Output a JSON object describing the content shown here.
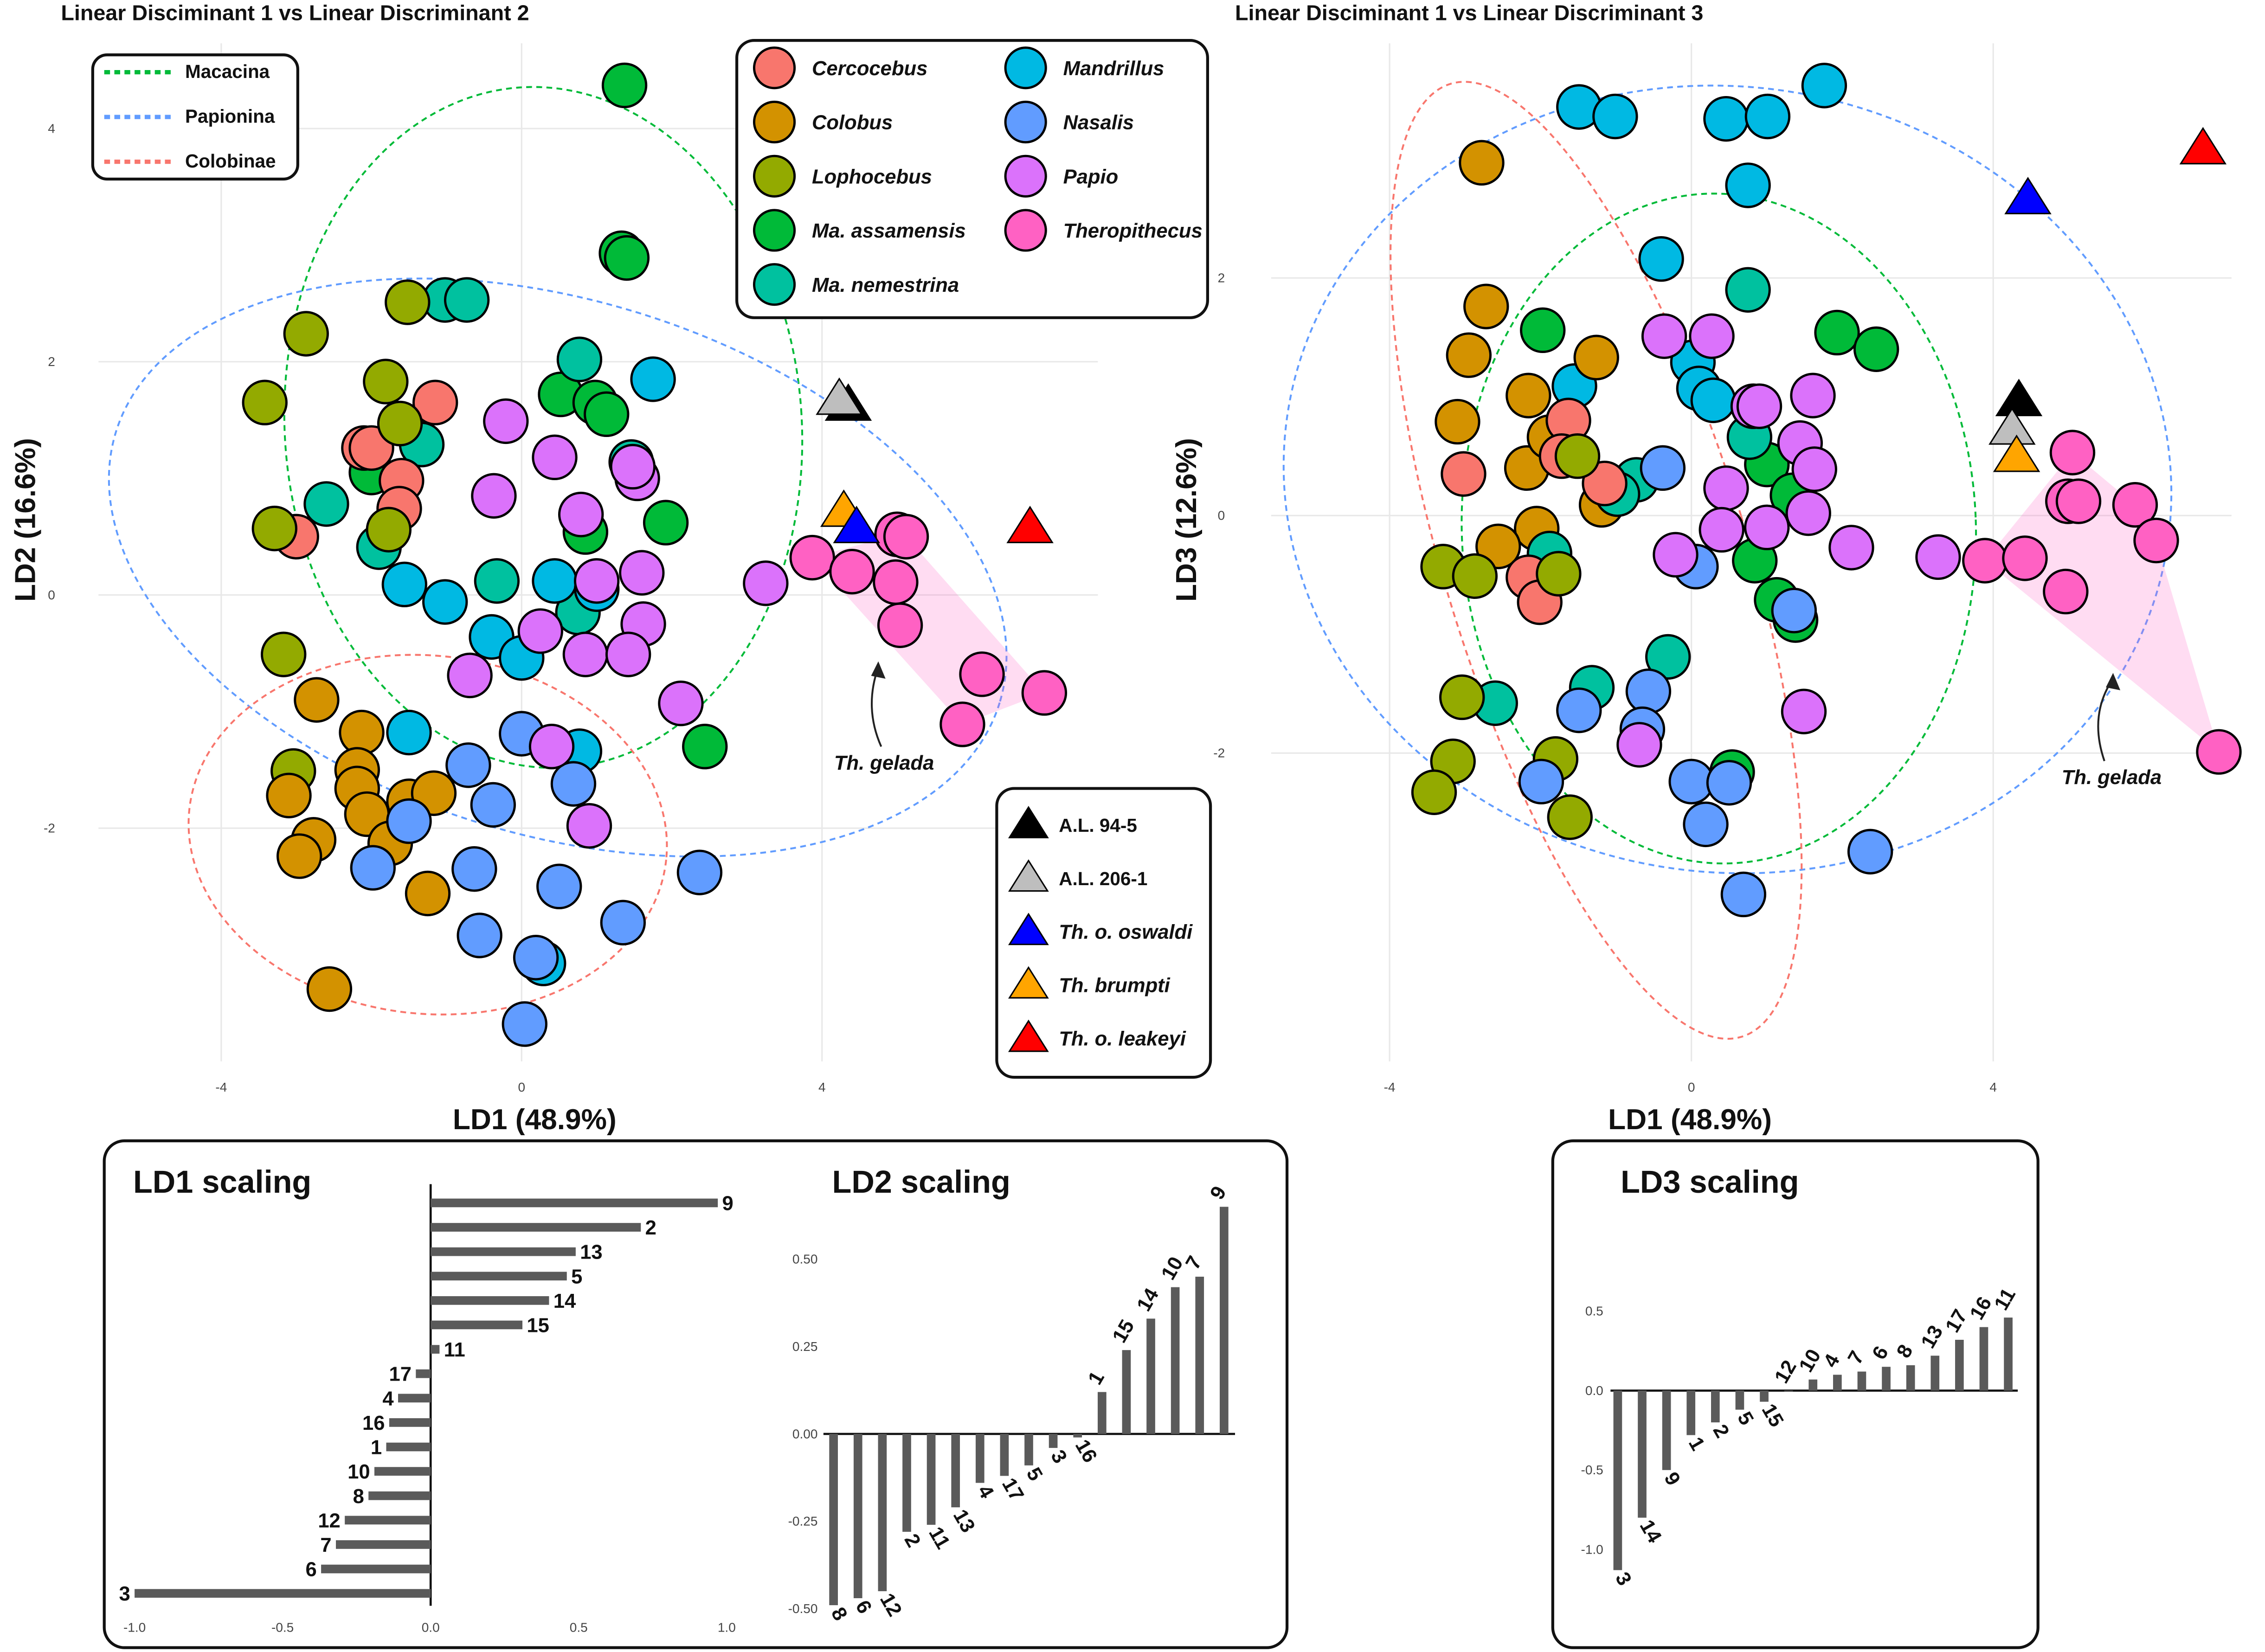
{
  "colors": {
    "Cercocebus": "#F8766D",
    "Colobus": "#D39200",
    "Lophocebus": "#93AA00",
    "Ma. assamensis": "#00BA38",
    "Ma. nemestrina": "#00C19F",
    "Mandrillus": "#00B9E3",
    "Nasalis": "#619CFF",
    "Papio": "#DB72FB",
    "Theropithecus": "#FF61C3",
    "A.L. 94-5": "#000000",
    "A.L. 206-1": "#BEBEBE",
    "Th. o. oswaldi": "#0000FF",
    "Th. brumpti": "#FFA500",
    "Th. o. leakeyi": "#FF0000",
    "Macacina": "#00BA38",
    "Papionina": "#619CFF",
    "Colobinae": "#F8766D"
  },
  "species_legend": [
    "Cercocebus",
    "Colobus",
    "Lophocebus",
    "Ma. assamensis",
    "Ma. nemestrina",
    "Mandrillus",
    "Nasalis",
    "Papio",
    "Theropithecus"
  ],
  "group_legend": [
    "Macacina",
    "Papionina",
    "Colobinae"
  ],
  "fossil_legend": [
    "A.L. 94-5",
    "A.L. 206-1",
    "Th. o. oswaldi",
    "Th. brumpti",
    "Th. o. leakeyi"
  ],
  "annotation": "Th. gelada",
  "chart_data": [
    {
      "type": "scatter",
      "title": "Linear Disciminant 1 vs Linear Discriminant 2",
      "xlabel": "LD1 (48.9%)",
      "ylabel": "LD2 (16.6%)",
      "xticks": [
        -4,
        0,
        4
      ],
      "yticks": [
        4,
        2,
        0,
        -2
      ],
      "grid": true,
      "series": {
        "Ma. assamensis": [
          [
            1.37,
            4.37
          ],
          [
            1.33,
            2.93
          ],
          [
            1.4,
            2.89
          ],
          [
            0.52,
            1.72
          ],
          [
            0.98,
            1.65
          ],
          [
            1.13,
            1.55
          ],
          [
            0.85,
            0.54
          ],
          [
            1.92,
            0.62
          ],
          [
            2.44,
            -1.3
          ],
          [
            -2.0,
            1.05
          ]
        ],
        "Ma. nemestrina": [
          [
            -1.02,
            2.53
          ],
          [
            -0.73,
            2.53
          ],
          [
            0.77,
            2.02
          ],
          [
            -1.33,
            1.29
          ],
          [
            -2.6,
            0.78
          ],
          [
            -1.9,
            0.41
          ],
          [
            -0.33,
            0.12
          ],
          [
            0.75,
            -0.15
          ],
          [
            1.46,
            1.14
          ]
        ],
        "Cercocebus": [
          [
            -1.15,
            1.65
          ],
          [
            -2.1,
            1.26
          ],
          [
            -2.0,
            1.26
          ],
          [
            -1.6,
            0.98
          ],
          [
            -1.63,
            0.74
          ],
          [
            -3.0,
            0.5
          ]
        ],
        "Lophocebus": [
          [
            -2.87,
            2.24
          ],
          [
            -3.42,
            1.65
          ],
          [
            -1.81,
            1.83
          ],
          [
            -1.52,
            2.51
          ],
          [
            -1.62,
            1.47
          ],
          [
            -3.29,
            0.57
          ],
          [
            -1.77,
            0.56
          ],
          [
            -3.17,
            -0.51
          ],
          [
            -3.04,
            -1.51
          ]
        ],
        "Colobus": [
          [
            -2.73,
            -0.9
          ],
          [
            -2.13,
            -1.18
          ],
          [
            -2.19,
            -1.5
          ],
          [
            -2.19,
            -1.66
          ],
          [
            -1.5,
            -1.77
          ],
          [
            -1.17,
            -1.7
          ],
          [
            -2.06,
            -1.88
          ],
          [
            -2.77,
            -2.1
          ],
          [
            -2.96,
            -2.24
          ],
          [
            -1.75,
            -2.13
          ],
          [
            -3.1,
            -1.72
          ],
          [
            -1.25,
            -2.56
          ],
          [
            -2.56,
            -3.38
          ]
        ],
        "Mandrillus": [
          [
            1.75,
            1.85
          ],
          [
            -1.56,
            0.09
          ],
          [
            -1.02,
            -0.06
          ],
          [
            0.44,
            0.12
          ],
          [
            1.0,
            0.05
          ],
          [
            -0.4,
            -0.36
          ],
          [
            0,
            -0.54
          ],
          [
            -1.5,
            -1.18
          ],
          [
            0.77,
            -1.34
          ],
          [
            0.29,
            -3.16
          ]
        ],
        "Nasalis": [
          [
            -0.71,
            -1.46
          ],
          [
            0,
            -1.19
          ],
          [
            0.69,
            -1.62
          ],
          [
            -0.38,
            -1.8
          ],
          [
            -1.5,
            -1.94
          ],
          [
            -1.98,
            -2.34
          ],
          [
            -0.63,
            -2.35
          ],
          [
            0.5,
            -2.5
          ],
          [
            2.37,
            -2.38
          ],
          [
            -0.56,
            -2.92
          ],
          [
            1.35,
            -2.81
          ],
          [
            0.19,
            -3.11
          ],
          [
            0.04,
            -3.68
          ]
        ],
        "Papio": [
          [
            -0.21,
            1.49
          ],
          [
            0.44,
            1.18
          ],
          [
            -0.37,
            0.85
          ],
          [
            0.79,
            0.69
          ],
          [
            1.54,
            1.0
          ],
          [
            1.48,
            1.1
          ],
          [
            1.6,
            0.19
          ],
          [
            1.0,
            0.12
          ],
          [
            1.62,
            -0.25
          ],
          [
            0.25,
            -0.31
          ],
          [
            0.85,
            -0.51
          ],
          [
            1.42,
            -0.51
          ],
          [
            -0.69,
            -0.69
          ],
          [
            2.12,
            -0.93
          ],
          [
            0.4,
            -1.3
          ],
          [
            0.9,
            -1.98
          ],
          [
            3.25,
            0.1
          ]
        ],
        "Theropithecus": [
          [
            3.87,
            0.32
          ],
          [
            4.4,
            0.2
          ],
          [
            4.98,
            0.11
          ],
          [
            5.04,
            -0.26
          ],
          [
            5.0,
            0.52
          ],
          [
            5.12,
            0.5
          ],
          [
            6.13,
            -0.68
          ],
          [
            6.96,
            -0.84
          ],
          [
            5.87,
            -1.11
          ]
        ]
      },
      "fossils": {
        "A.L. 94-5": [
          4.35,
          1.63
        ],
        "A.L. 206-1": [
          4.23,
          1.68
        ],
        "Th. brumpti": [
          4.29,
          0.72
        ],
        "Th. o. oswaldi": [
          4.46,
          0.58
        ],
        "Th. o. leakeyi": [
          6.77,
          0.58
        ]
      }
    },
    {
      "type": "scatter",
      "title": "Linear Disciminant 1 vs Linear Discriminant 3",
      "xlabel": "LD1 (48.9%)",
      "ylabel": "LD3 (12.6%)",
      "xticks": [
        -4,
        0,
        4
      ],
      "yticks": [
        2,
        0,
        -2
      ],
      "grid": true,
      "series": {
        "Mandrillus": [
          [
            -1.49,
            3.44
          ],
          [
            -1.01,
            3.36
          ],
          [
            0.46,
            3.34
          ],
          [
            1.01,
            3.36
          ],
          [
            1.76,
            3.62
          ],
          [
            0.75,
            2.78
          ],
          [
            -0.4,
            2.16
          ],
          [
            -1.55,
            1.09
          ],
          [
            0.02,
            1.29
          ],
          [
            0.1,
            1.07
          ],
          [
            0.29,
            0.97
          ]
        ],
        "Colobus": [
          [
            -2.78,
            2.97
          ],
          [
            -2.72,
            1.76
          ],
          [
            -2.95,
            1.35
          ],
          [
            -1.26,
            1.33
          ],
          [
            -2.16,
            1.01
          ],
          [
            -3.1,
            0.79
          ],
          [
            -2.18,
            0.4
          ],
          [
            -2.05,
            -0.11
          ],
          [
            -2.56,
            -0.26
          ],
          [
            -1.19,
            0.09
          ],
          [
            -1.88,
            0.66
          ]
        ],
        "Ma. assamensis": [
          [
            -1.97,
            1.56
          ],
          [
            1.93,
            1.54
          ],
          [
            2.45,
            1.4
          ],
          [
            1.0,
            0.43
          ],
          [
            1.34,
            0.17
          ],
          [
            0.84,
            -0.38
          ],
          [
            1.13,
            -0.71
          ],
          [
            1.38,
            -0.88
          ],
          [
            0.54,
            -2.16
          ]
        ],
        "Ma. nemestrina": [
          [
            0.75,
            1.9
          ],
          [
            0.77,
            0.66
          ],
          [
            -0.73,
            0.3
          ],
          [
            -0.98,
            0.18
          ],
          [
            -1.88,
            -0.32
          ],
          [
            -1.32,
            -1.45
          ],
          [
            -0.31,
            -1.19
          ],
          [
            -2.6,
            -1.58
          ]
        ],
        "Cercocebus": [
          [
            -1.63,
            0.8
          ],
          [
            -3.02,
            0.35
          ],
          [
            -1.72,
            0.5
          ],
          [
            -1.15,
            0.27
          ],
          [
            -2.16,
            -0.52
          ],
          [
            -2.01,
            -0.73
          ]
        ],
        "Lophocebus": [
          [
            -1.51,
            0.5
          ],
          [
            -3.29,
            -0.43
          ],
          [
            -2.87,
            -0.51
          ],
          [
            -1.76,
            -0.49
          ],
          [
            -3.04,
            -1.53
          ],
          [
            -3.16,
            -2.07
          ],
          [
            -3.41,
            -2.33
          ],
          [
            -1.8,
            -2.05
          ],
          [
            -1.61,
            -2.54
          ]
        ],
        "Nasalis": [
          [
            -0.38,
            0.4
          ],
          [
            0.06,
            -0.43
          ],
          [
            1.36,
            -0.8
          ],
          [
            -0.57,
            -1.48
          ],
          [
            -1.49,
            -1.64
          ],
          [
            -0.65,
            -1.8
          ],
          [
            -1.99,
            -2.24
          ],
          [
            0,
            -2.24
          ],
          [
            0.5,
            -2.25
          ],
          [
            0.19,
            -2.6
          ],
          [
            2.37,
            -2.83
          ],
          [
            0.69,
            -3.19
          ]
        ],
        "Papio": [
          [
            -0.36,
            1.51
          ],
          [
            0.27,
            1.51
          ],
          [
            0.82,
            0.92
          ],
          [
            0.9,
            0.92
          ],
          [
            1.61,
            1.01
          ],
          [
            1.44,
            0.61
          ],
          [
            1.63,
            0.39
          ],
          [
            0.46,
            0.23
          ],
          [
            1.55,
            0.02
          ],
          [
            1.0,
            -0.1
          ],
          [
            0.4,
            -0.12
          ],
          [
            -0.21,
            -0.33
          ],
          [
            2.12,
            -0.27
          ],
          [
            3.27,
            -0.35
          ],
          [
            1.49,
            -1.65
          ],
          [
            -0.69,
            -1.93
          ]
        ],
        "Theropithecus": [
          [
            3.89,
            -0.38
          ],
          [
            4.42,
            -0.36
          ],
          [
            5.05,
            0.53
          ],
          [
            4.99,
            0.12
          ],
          [
            5.13,
            0.12
          ],
          [
            5.88,
            0.09
          ],
          [
            6.16,
            -0.21
          ],
          [
            4.96,
            -0.64
          ],
          [
            6.99,
            -1.99
          ]
        ]
      },
      "fossils": {
        "A.L. 94-5": [
          4.34,
          0.97
        ],
        "A.L. 206-1": [
          4.25,
          0.73
        ],
        "Th. brumpti": [
          4.31,
          0.5
        ],
        "Th. o. oswaldi": [
          4.46,
          2.67
        ],
        "Th. o. leakeyi": [
          6.78,
          3.09
        ]
      }
    },
    {
      "type": "bar",
      "orientation": "horizontal",
      "title": "LD1 scaling",
      "categories": [
        "9",
        "2",
        "13",
        "5",
        "14",
        "15",
        "11",
        "17",
        "4",
        "16",
        "1",
        "10",
        "8",
        "12",
        "7",
        "6",
        "3"
      ],
      "values": [
        0.97,
        0.71,
        0.49,
        0.46,
        0.4,
        0.31,
        0.03,
        -0.05,
        -0.11,
        -0.14,
        -0.15,
        -0.19,
        -0.21,
        -0.29,
        -0.32,
        -0.37,
        -1.0
      ],
      "ticks": [
        "-1.0",
        "-0.5",
        "0.0",
        "0.5",
        "1.0"
      ],
      "xlim": [
        -1.0,
        1.0
      ]
    },
    {
      "type": "bar",
      "orientation": "vertical",
      "title": "LD2 scaling",
      "categories": [
        "8",
        "6",
        "12",
        "2",
        "11",
        "13",
        "4",
        "17",
        "5",
        "3",
        "16",
        "1",
        "15",
        "14",
        "10",
        "7",
        "9"
      ],
      "values": [
        -0.49,
        -0.47,
        -0.45,
        -0.28,
        -0.26,
        -0.21,
        -0.14,
        -0.12,
        -0.09,
        -0.04,
        -0.01,
        0.12,
        0.24,
        0.33,
        0.42,
        0.45,
        0.65
      ],
      "ticks": [
        "0.50",
        "0.25",
        "0.00",
        "-0.25",
        "-0.50"
      ],
      "ylim": [
        -0.5,
        0.65
      ]
    },
    {
      "type": "bar",
      "orientation": "vertical",
      "title": "LD3 scaling",
      "categories": [
        "3",
        "14",
        "9",
        "1",
        "2",
        "5",
        "15",
        "12",
        "10",
        "4",
        "7",
        "6",
        "8",
        "13",
        "17",
        "16",
        "11"
      ],
      "values": [
        -1.13,
        -0.8,
        -0.5,
        -0.28,
        -0.2,
        -0.12,
        -0.07,
        0.0,
        0.07,
        0.1,
        0.12,
        0.15,
        0.16,
        0.22,
        0.32,
        0.4,
        0.46
      ],
      "ticks": [
        "0.5",
        "0.0",
        "-0.5",
        "-1.0"
      ],
      "ylim": [
        -1.13,
        0.5
      ]
    }
  ]
}
